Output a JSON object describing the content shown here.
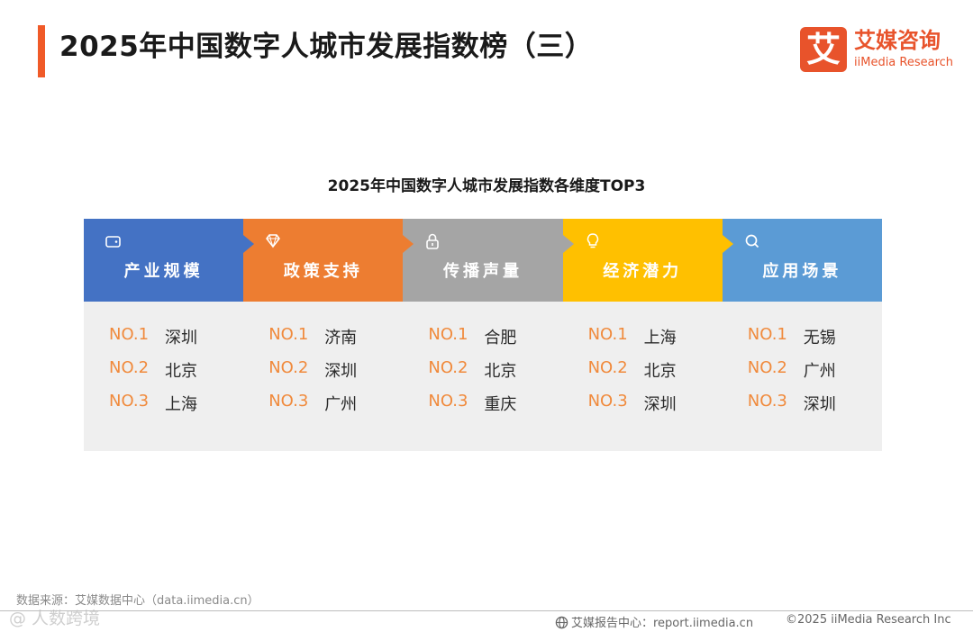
{
  "title": "2025年中国数字人城市发展指数榜（三）",
  "logo": {
    "mark": "艾",
    "cn": "艾媒咨询",
    "en": "iiMedia Research"
  },
  "chart_data": {
    "type": "table",
    "title": "2025年中国数字人城市发展指数各维度TOP3",
    "columns": [
      {
        "name": "产业规模",
        "color": "#4472c4",
        "icon": "tag-icon",
        "ranks": [
          {
            "no": "NO.1",
            "city": "深圳"
          },
          {
            "no": "NO.2",
            "city": "北京"
          },
          {
            "no": "NO.3",
            "city": "上海"
          }
        ]
      },
      {
        "name": "政策支持",
        "color": "#ed7d31",
        "icon": "diamond-icon",
        "ranks": [
          {
            "no": "NO.1",
            "city": "济南"
          },
          {
            "no": "NO.2",
            "city": "深圳"
          },
          {
            "no": "NO.3",
            "city": "广州"
          }
        ]
      },
      {
        "name": "传播声量",
        "color": "#a5a5a5",
        "icon": "lock-icon",
        "ranks": [
          {
            "no": "NO.1",
            "city": "合肥"
          },
          {
            "no": "NO.2",
            "city": "北京"
          },
          {
            "no": "NO.3",
            "city": "重庆"
          }
        ]
      },
      {
        "name": "经济潜力",
        "color": "#ffc000",
        "icon": "lightbulb-icon",
        "ranks": [
          {
            "no": "NO.1",
            "city": "上海"
          },
          {
            "no": "NO.2",
            "city": "北京"
          },
          {
            "no": "NO.3",
            "city": "深圳"
          }
        ]
      },
      {
        "name": "应用场景",
        "color": "#5b9bd5",
        "icon": "search-icon",
        "ranks": [
          {
            "no": "NO.1",
            "city": "无锡"
          },
          {
            "no": "NO.2",
            "city": "广州"
          },
          {
            "no": "NO.3",
            "city": "深圳"
          }
        ]
      }
    ]
  },
  "footer": {
    "source": "数据来源：艾媒数据中心（data.iimedia.cn）",
    "watermark": "@ 人数跨境",
    "report": "艾媒报告中心：report.iimedia.cn",
    "copyright": "©2025  iiMedia Research  Inc"
  }
}
